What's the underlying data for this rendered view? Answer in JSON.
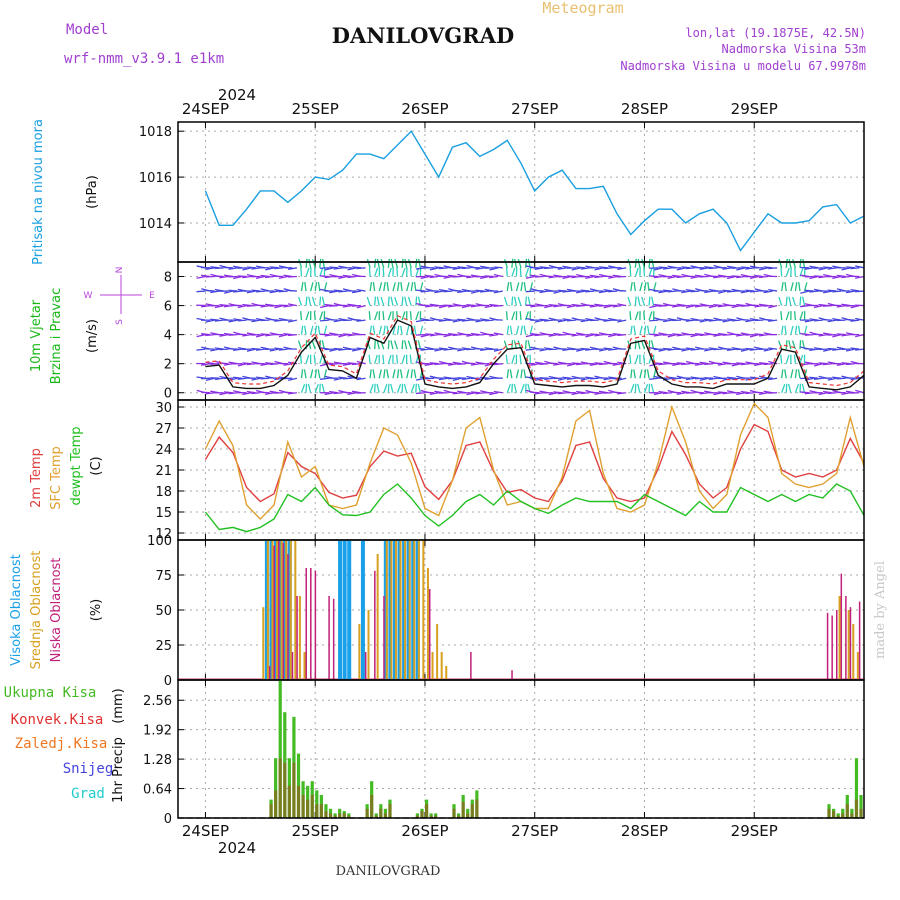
{
  "header": {
    "model_label": "Model",
    "model_name": "wrf-nmm_v3.9.1 e1km",
    "station_title": "DANILOVGRAD",
    "product": "Meteogram",
    "coords": "lon,lat (19.1875E, 42.5N)",
    "elevation": "Nadmorska Visina 53m",
    "model_elevation": "Nadmorska Visina u modelu 67.9978m",
    "year": "2024",
    "footer_station": "DANILOVGRAD",
    "watermark": "made by Angel"
  },
  "colors": {
    "pressure": "#1a9fe0",
    "temp2m": "#e04040",
    "sfc_temp": "#e0a030",
    "dewpoint": "#22c022",
    "high_cloud": "#1aa0e8",
    "mid_cloud": "#d8a020",
    "low_cloud": "#c0207a",
    "total_rain": "#44bb22",
    "conv_rain": "#e03030",
    "freezing": "#ee7722",
    "snow": "#4444dd",
    "hail": "#22cccc",
    "wind_label": "#18b818",
    "wind_compass": "#bb44dd",
    "title_purple": "#a040d0",
    "product_gold": "#e8c070"
  },
  "axes": {
    "time_labels": [
      "24SEP",
      "25SEP",
      "26SEP",
      "27SEP",
      "28SEP",
      "29SEP"
    ],
    "bottom_year": "2024"
  },
  "chart_data": [
    {
      "type": "line",
      "id": "pressure",
      "ylabel_lines": [
        "Pritisak na nivou mora"
      ],
      "unit": "(hPa)",
      "x_hours": [
        0,
        3,
        6,
        9,
        12,
        15,
        18,
        21,
        24,
        27,
        30,
        33,
        36,
        39,
        42,
        45,
        48,
        51,
        54,
        57,
        60,
        63,
        66,
        69,
        72,
        75,
        78,
        81,
        84,
        87,
        90,
        93,
        96,
        99,
        102,
        105,
        108,
        111,
        114,
        117,
        120,
        123,
        126,
        129,
        132,
        135,
        138,
        141,
        144
      ],
      "series": [
        {
          "name": "Pritisak na nivou mora",
          "values": [
            1015.4,
            1013.9,
            1013.9,
            1014.6,
            1015.4,
            1015.4,
            1014.9,
            1015.4,
            1016.0,
            1015.9,
            1016.3,
            1017.0,
            1017.0,
            1016.8,
            1017.4,
            1018.0,
            1017.0,
            1016.0,
            1017.3,
            1017.5,
            1016.9,
            1017.2,
            1017.6,
            1016.6,
            1015.4,
            1016.0,
            1016.3,
            1015.5,
            1015.5,
            1015.6,
            1014.4,
            1013.5,
            1014.1,
            1014.6,
            1014.6,
            1014.0,
            1014.4,
            1014.6,
            1014.0,
            1012.8,
            1013.6,
            1014.4,
            1014.0,
            1014.0,
            1014.1,
            1014.7,
            1014.8,
            1014.0,
            1014.3
          ]
        }
      ],
      "yticks": [
        1014,
        1016,
        1018
      ],
      "ylim": [
        1012.3,
        1018.4
      ]
    },
    {
      "type": "line",
      "id": "wind",
      "ylabel_lines": [
        "10m Vjetar",
        "Brzina i Pravac"
      ],
      "unit": "(m/s)",
      "compass": {
        "n": "N",
        "e": "E",
        "w": "W",
        "s": "S"
      },
      "x_hours": [
        0,
        3,
        6,
        9,
        12,
        15,
        18,
        21,
        24,
        27,
        30,
        33,
        36,
        39,
        42,
        45,
        48,
        51,
        54,
        57,
        60,
        63,
        66,
        69,
        72,
        75,
        78,
        81,
        84,
        87,
        90,
        93,
        96,
        99,
        102,
        105,
        108,
        111,
        114,
        117,
        120,
        123,
        126,
        129,
        132,
        135,
        138,
        141,
        144
      ],
      "series": [
        {
          "name": "Brzina",
          "values": [
            1.8,
            1.9,
            0.4,
            0.3,
            0.3,
            0.5,
            1.2,
            2.8,
            3.8,
            1.6,
            1.5,
            1.0,
            3.8,
            3.4,
            5.0,
            4.6,
            0.6,
            0.4,
            0.3,
            0.4,
            0.7,
            2.0,
            3.0,
            3.1,
            0.6,
            0.5,
            0.4,
            0.5,
            0.5,
            0.4,
            0.6,
            3.4,
            3.6,
            1.2,
            0.6,
            0.4,
            0.4,
            0.3,
            0.6,
            0.6,
            0.6,
            1.0,
            3.0,
            2.8,
            0.4,
            0.3,
            0.2,
            0.4,
            1.2
          ]
        }
      ],
      "yticks": [
        0,
        2,
        4,
        6,
        8
      ],
      "ylim": [
        -0.5,
        9.0
      ]
    },
    {
      "type": "line",
      "id": "temperature",
      "ylabel_lines": [
        "2m Temp",
        "SFC Temp",
        "dewpt Temp"
      ],
      "unit": "(C)",
      "x_hours": [
        0,
        3,
        6,
        9,
        12,
        15,
        18,
        21,
        24,
        27,
        30,
        33,
        36,
        39,
        42,
        45,
        48,
        51,
        54,
        57,
        60,
        63,
        66,
        69,
        72,
        75,
        78,
        81,
        84,
        87,
        90,
        93,
        96,
        99,
        102,
        105,
        108,
        111,
        114,
        117,
        120,
        123,
        126,
        129,
        132,
        135,
        138,
        141,
        144
      ],
      "series": [
        {
          "name": "2m Temp",
          "values": [
            22.5,
            25.7,
            23.5,
            18.5,
            16.5,
            17.6,
            23.5,
            21.5,
            20.5,
            17.8,
            17.0,
            17.4,
            21.5,
            23.7,
            23.0,
            23.4,
            18.6,
            16.8,
            19.5,
            24.5,
            25.0,
            20.8,
            17.8,
            18.2,
            17.0,
            16.5,
            19.5,
            24.5,
            25.0,
            19.8,
            17.0,
            16.5,
            17.0,
            21.2,
            26.5,
            23.2,
            19.0,
            17.0,
            18.5,
            24.0,
            27.5,
            26.5,
            21.0,
            20.0,
            20.5,
            20.0,
            21.0,
            25.5,
            22.0
          ]
        },
        {
          "name": "SFC Temp",
          "values": [
            24.0,
            28.0,
            24.5,
            16.0,
            14.0,
            16.0,
            25.0,
            20.0,
            21.5,
            16.0,
            15.5,
            16.0,
            22.0,
            27.0,
            26.0,
            22.0,
            15.5,
            14.5,
            19.5,
            27.0,
            28.5,
            21.0,
            16.0,
            16.5,
            15.5,
            15.5,
            20.0,
            28.0,
            29.5,
            20.5,
            15.5,
            15.0,
            16.0,
            22.0,
            30.0,
            25.0,
            18.0,
            15.5,
            17.5,
            26.0,
            30.5,
            28.5,
            20.5,
            19.0,
            18.5,
            19.0,
            20.5,
            28.5,
            21.5
          ]
        },
        {
          "name": "dewpt Temp",
          "values": [
            15.0,
            12.5,
            12.8,
            12.2,
            12.8,
            14.0,
            17.5,
            16.5,
            18.5,
            16.0,
            14.6,
            14.5,
            15.0,
            17.5,
            19.0,
            17.0,
            14.5,
            13.0,
            14.5,
            16.5,
            17.5,
            16.0,
            18.0,
            16.5,
            15.5,
            14.8,
            16.0,
            17.0,
            16.5,
            16.5,
            16.5,
            15.5,
            17.5,
            16.5,
            15.5,
            14.5,
            16.5,
            15.0,
            15.0,
            18.5,
            17.5,
            16.5,
            17.5,
            16.5,
            17.5,
            17.0,
            19.0,
            18.0,
            14.5
          ]
        }
      ],
      "yticks": [
        12,
        15,
        18,
        21,
        24,
        27,
        30
      ],
      "ylim": [
        11.0,
        31.0
      ]
    },
    {
      "type": "bar",
      "id": "clouds",
      "ylabel_lines": [
        "Visoka Oblacnost",
        "Srednja Oblacnost",
        "Niska Oblacnost"
      ],
      "unit": "(%)",
      "x_hours": [
        12,
        13,
        14,
        15,
        16,
        17,
        18,
        19,
        20,
        21,
        22,
        23,
        24,
        25,
        26,
        27,
        28,
        29,
        30,
        31,
        33,
        34,
        35,
        36,
        37,
        38,
        39,
        40,
        41,
        42,
        43,
        44,
        45,
        46,
        47,
        48,
        49,
        50,
        51,
        52,
        57,
        66,
        135,
        136,
        137,
        138,
        139,
        140,
        141,
        142,
        143
      ],
      "series": [
        {
          "name": "Visoka Oblacnost",
          "values": [
            0,
            100,
            100,
            100,
            100,
            100,
            100,
            0,
            0,
            0,
            0,
            0,
            0,
            0,
            0,
            0,
            0,
            100,
            100,
            100,
            0,
            100,
            0,
            0,
            0,
            0,
            100,
            100,
            100,
            100,
            100,
            100,
            100,
            100,
            0,
            0,
            0,
            0,
            0,
            0,
            0,
            0,
            0,
            0,
            0,
            0,
            0,
            0,
            0,
            0,
            0
          ]
        },
        {
          "name": "Srednja Oblacnost",
          "values": [
            52,
            100,
            100,
            100,
            100,
            100,
            100,
            100,
            60,
            20,
            0,
            0,
            0,
            0,
            0,
            0,
            0,
            0,
            0,
            0,
            40,
            0,
            50,
            0,
            90,
            0,
            100,
            100,
            100,
            100,
            100,
            100,
            100,
            100,
            100,
            80,
            20,
            40,
            20,
            10,
            0,
            0,
            0,
            0,
            0,
            60,
            0,
            50,
            40,
            20,
            0
          ]
        },
        {
          "name": "Niska Oblacnost",
          "values": [
            0,
            10,
            96,
            100,
            98,
            90,
            20,
            60,
            0,
            80,
            80,
            78,
            0,
            0,
            60,
            58,
            0,
            0,
            0,
            0,
            0,
            20,
            0,
            78,
            0,
            60,
            0,
            0,
            0,
            0,
            0,
            0,
            0,
            0,
            0,
            65,
            0,
            0,
            0,
            0,
            20,
            7,
            48,
            46,
            50,
            76,
            60,
            52,
            0,
            56,
            0
          ]
        }
      ],
      "yticks": [
        0,
        25,
        50,
        75,
        100
      ],
      "ylim": [
        0,
        100
      ]
    },
    {
      "type": "bar",
      "id": "precip",
      "ylabel_lines": [
        "1hr Precip"
      ],
      "unit": "(mm)",
      "legend": [
        "Ukupna Kisa",
        "Konvek.Kisa",
        "Zaledj.Kisa",
        "Snijeg",
        "Grad"
      ],
      "x_hours": [
        14,
        15,
        16,
        17,
        18,
        19,
        20,
        21,
        22,
        23,
        24,
        25,
        26,
        27,
        28,
        29,
        30,
        31,
        35,
        36,
        37,
        38,
        39,
        40,
        46,
        47,
        48,
        49,
        50,
        54,
        55,
        56,
        57,
        58,
        59,
        136,
        137,
        138,
        139,
        140,
        141,
        142,
        143
      ],
      "series": [
        {
          "name": "Ukupna Kisa",
          "values": [
            0.4,
            1.3,
            3.0,
            2.3,
            1.3,
            2.2,
            1.4,
            0.8,
            0.7,
            0.8,
            0.6,
            0.5,
            0.3,
            0.2,
            0.1,
            0.2,
            0.15,
            0.1,
            0.3,
            0.8,
            0.1,
            0.3,
            0.2,
            0.4,
            0.1,
            0.2,
            0.4,
            0.1,
            0.1,
            0.3,
            0.1,
            0.5,
            0.2,
            0.4,
            0.6,
            0.3,
            0.2,
            0.1,
            0.2,
            0.5,
            0.2,
            1.3,
            0.5
          ]
        },
        {
          "name": "Konvek.Kisa",
          "values": [
            0.3,
            0.6,
            1.3,
            1.2,
            0.7,
            1.2,
            0.7,
            0.5,
            0.4,
            0.5,
            0.3,
            0.3,
            0.15,
            0.1,
            0.05,
            0.1,
            0.1,
            0.05,
            0.2,
            0.5,
            0.05,
            0.2,
            0.1,
            0.3,
            0.05,
            0.15,
            0.3,
            0.05,
            0.05,
            0.2,
            0.05,
            0.35,
            0.1,
            0.3,
            0.4,
            0.2,
            0.15,
            0.05,
            0.1,
            0.3,
            0.1,
            0.4,
            0.2
          ]
        }
      ],
      "yticks": [
        0,
        0.64,
        1.28,
        1.92,
        2.56
      ],
      "ylim": [
        0,
        3.0
      ]
    }
  ]
}
